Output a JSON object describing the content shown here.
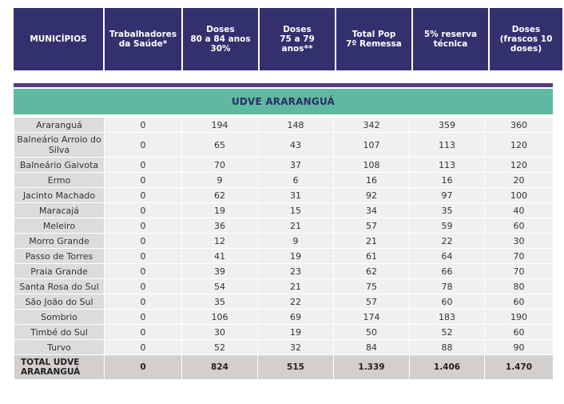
{
  "headers": [
    "MUNICÍPIOS",
    "Trabalhadores\nda Saúde*",
    "Doses\n80 a 84 anos\n30%",
    "Doses\n75 a 79 anos**",
    "Total Pop\n7º Remessa",
    "5% reserva\ntécnica",
    "Doses\n(frascos 10\ndoses)"
  ],
  "section_title": "UDVE ARARANGUÁ",
  "rows": [
    [
      "Araranguá",
      "0",
      "194",
      "148",
      "342",
      "359",
      "360"
    ],
    [
      "Balneário Arroio do Silva",
      "0",
      "65",
      "43",
      "107",
      "113",
      "120"
    ],
    [
      "Balneário Gaivota",
      "0",
      "70",
      "37",
      "108",
      "113",
      "120"
    ],
    [
      "Ermo",
      "0",
      "9",
      "6",
      "16",
      "16",
      "20"
    ],
    [
      "Jacinto Machado",
      "0",
      "62",
      "31",
      "92",
      "97",
      "100"
    ],
    [
      "Maracajá",
      "0",
      "19",
      "15",
      "34",
      "35",
      "40"
    ],
    [
      "Meleiro",
      "0",
      "36",
      "21",
      "57",
      "59",
      "60"
    ],
    [
      "Morro Grande",
      "0",
      "12",
      "9",
      "21",
      "22",
      "30"
    ],
    [
      "Passo de Torres",
      "0",
      "41",
      "19",
      "61",
      "64",
      "70"
    ],
    [
      "Praia Grande",
      "0",
      "39",
      "23",
      "62",
      "66",
      "70"
    ],
    [
      "Santa Rosa do Sul",
      "0",
      "54",
      "21",
      "75",
      "78",
      "80"
    ],
    [
      "São João do Sul",
      "0",
      "35",
      "22",
      "57",
      "60",
      "60"
    ],
    [
      "Sombrio",
      "0",
      "106",
      "69",
      "174",
      "183",
      "190"
    ],
    [
      "Timbé do Sul",
      "0",
      "30",
      "19",
      "50",
      "52",
      "60"
    ],
    [
      "Turvo",
      "0",
      "52",
      "32",
      "84",
      "88",
      "90"
    ]
  ],
  "total": [
    "TOTAL UDVE\nARARANGUÁ",
    "0",
    "824",
    "515",
    "1.339",
    "1.406",
    "1.470"
  ]
}
